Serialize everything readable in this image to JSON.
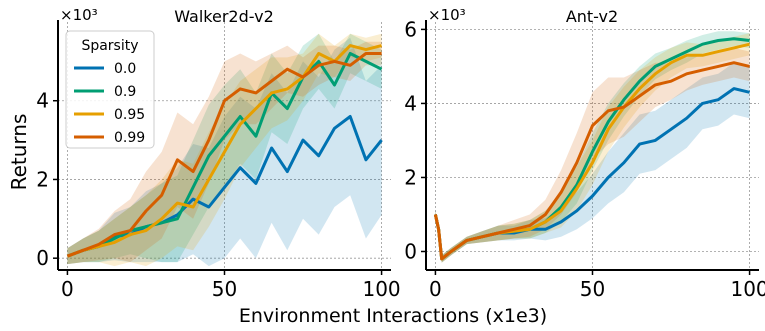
{
  "chart_data": {
    "type": "line",
    "ylabel": "Returns",
    "xlabel": "Environment Interactions (x1e3)",
    "legend": {
      "title": "Sparsity",
      "placement": "top-left of first panel",
      "entries": [
        "0.0",
        "0.9",
        "0.95",
        "0.99"
      ]
    },
    "colors": {
      "0.0": "#0072b2",
      "0.9": "#009e73",
      "0.95": "#e69f00",
      "0.99": "#d55e00"
    },
    "grid": true,
    "panels": [
      {
        "title": "Walker2d-v2",
        "multiplier_label": "×10³",
        "xlim": [
          -3,
          103
        ],
        "ylim": [
          -0.3,
          6.0
        ],
        "xticks": [
          0,
          50,
          100
        ],
        "xtick_labels": [
          "0",
          "50",
          "100"
        ],
        "yticks": [
          0,
          2,
          4
        ],
        "ytick_labels": [
          "0",
          "2",
          "4"
        ],
        "series": [
          {
            "name": "0.0",
            "x": [
              0,
              5,
              10,
              15,
              20,
              25,
              30,
              35,
              40,
              45,
              50,
              55,
              60,
              65,
              70,
              75,
              80,
              85,
              90,
              95,
              100
            ],
            "y": [
              0.05,
              0.2,
              0.3,
              0.55,
              0.6,
              0.8,
              0.9,
              1.1,
              1.5,
              1.3,
              1.8,
              2.3,
              1.9,
              2.8,
              2.2,
              3.0,
              2.6,
              3.3,
              3.6,
              2.5,
              3.0
            ],
            "band": [
              0.2,
              0.3,
              0.4,
              0.6,
              0.7,
              0.9,
              1.0,
              1.2,
              1.4,
              1.5,
              1.8,
              1.8,
              1.9,
              1.9,
              2.0,
              2.0,
              2.0,
              2.0,
              2.0,
              2.0,
              1.9
            ]
          },
          {
            "name": "0.9",
            "x": [
              0,
              5,
              10,
              15,
              20,
              25,
              30,
              35,
              40,
              45,
              50,
              55,
              60,
              65,
              70,
              75,
              80,
              85,
              90,
              95,
              100
            ],
            "y": [
              0.05,
              0.2,
              0.3,
              0.5,
              0.7,
              0.8,
              0.9,
              1.0,
              1.8,
              2.6,
              3.1,
              3.6,
              3.1,
              4.2,
              3.8,
              4.6,
              5.0,
              4.4,
              5.2,
              5.0,
              4.8
            ],
            "band": [
              0.2,
              0.3,
              0.4,
              0.5,
              0.6,
              0.8,
              1.0,
              1.1,
              1.2,
              1.3,
              1.3,
              1.2,
              1.1,
              1.0,
              0.9,
              0.8,
              0.7,
              0.6,
              0.5,
              0.5,
              0.5
            ]
          },
          {
            "name": "0.95",
            "x": [
              0,
              5,
              10,
              15,
              20,
              25,
              30,
              35,
              40,
              45,
              50,
              55,
              60,
              65,
              70,
              75,
              80,
              85,
              90,
              95,
              100
            ],
            "y": [
              0.05,
              0.2,
              0.3,
              0.4,
              0.6,
              0.7,
              1.0,
              1.4,
              1.3,
              2.0,
              2.7,
              3.4,
              3.8,
              4.2,
              4.3,
              4.6,
              5.2,
              5.0,
              5.4,
              5.3,
              5.4
            ],
            "band": [
              0.2,
              0.3,
              0.4,
              0.6,
              0.7,
              0.9,
              1.0,
              1.1,
              1.1,
              1.2,
              1.2,
              1.1,
              1.0,
              0.9,
              0.8,
              0.6,
              0.5,
              0.4,
              0.3,
              0.3,
              0.3
            ]
          },
          {
            "name": "0.99",
            "x": [
              0,
              5,
              10,
              15,
              20,
              25,
              30,
              35,
              40,
              45,
              50,
              55,
              60,
              65,
              70,
              75,
              80,
              85,
              90,
              95,
              100
            ],
            "y": [
              0.05,
              0.2,
              0.35,
              0.6,
              0.7,
              1.2,
              1.6,
              2.5,
              2.2,
              3.0,
              4.0,
              4.3,
              4.2,
              4.5,
              4.8,
              4.6,
              4.9,
              5.0,
              4.9,
              5.2,
              5.2
            ],
            "band": [
              0.2,
              0.3,
              0.4,
              0.6,
              0.8,
              1.0,
              1.1,
              1.2,
              1.2,
              1.1,
              1.0,
              0.9,
              0.8,
              0.7,
              0.6,
              0.5,
              0.5,
              0.4,
              0.4,
              0.3,
              0.3
            ]
          }
        ]
      },
      {
        "title": "Ant-v2",
        "multiplier_label": "×10³",
        "xlim": [
          -3,
          103
        ],
        "ylim": [
          -0.5,
          6.2
        ],
        "xticks": [
          0,
          50,
          100
        ],
        "xtick_labels": [
          "0",
          "50",
          "100"
        ],
        "yticks": [
          0,
          2,
          4,
          6
        ],
        "ytick_labels": [
          "0",
          "2",
          "4",
          "6"
        ],
        "series": [
          {
            "name": "0.0",
            "x": [
              0,
              1,
              2,
              5,
              10,
              15,
              20,
              25,
              30,
              35,
              40,
              45,
              50,
              55,
              60,
              65,
              70,
              75,
              80,
              85,
              90,
              95,
              100
            ],
            "y": [
              1.0,
              0.6,
              -0.2,
              0.0,
              0.3,
              0.4,
              0.5,
              0.5,
              0.6,
              0.6,
              0.8,
              1.1,
              1.5,
              2.0,
              2.4,
              2.9,
              3.0,
              3.3,
              3.6,
              4.0,
              4.1,
              4.4,
              4.3
            ],
            "band": [
              0.1,
              0.1,
              0.1,
              0.1,
              0.1,
              0.15,
              0.2,
              0.2,
              0.25,
              0.3,
              0.4,
              0.5,
              0.6,
              0.7,
              0.8,
              0.8,
              0.8,
              0.8,
              0.8,
              0.7,
              0.7,
              0.7,
              0.7
            ]
          },
          {
            "name": "0.9",
            "x": [
              0,
              1,
              2,
              5,
              10,
              15,
              20,
              25,
              30,
              35,
              40,
              45,
              50,
              55,
              60,
              65,
              70,
              75,
              80,
              85,
              90,
              95,
              100
            ],
            "y": [
              1.0,
              0.6,
              -0.2,
              0.0,
              0.3,
              0.4,
              0.5,
              0.55,
              0.6,
              0.8,
              1.2,
              1.8,
              2.7,
              3.5,
              4.1,
              4.6,
              5.0,
              5.2,
              5.4,
              5.6,
              5.7,
              5.75,
              5.7
            ],
            "band": [
              0.1,
              0.1,
              0.1,
              0.1,
              0.1,
              0.15,
              0.2,
              0.2,
              0.25,
              0.3,
              0.4,
              0.5,
              0.5,
              0.5,
              0.45,
              0.4,
              0.35,
              0.3,
              0.3,
              0.25,
              0.25,
              0.2,
              0.2
            ]
          },
          {
            "name": "0.95",
            "x": [
              0,
              1,
              2,
              5,
              10,
              15,
              20,
              25,
              30,
              35,
              40,
              45,
              50,
              55,
              60,
              65,
              70,
              75,
              80,
              85,
              90,
              95,
              100
            ],
            "y": [
              1.0,
              0.6,
              -0.2,
              0.0,
              0.3,
              0.4,
              0.5,
              0.55,
              0.6,
              0.8,
              1.1,
              1.7,
              2.4,
              3.3,
              3.9,
              4.4,
              4.8,
              5.1,
              5.3,
              5.3,
              5.4,
              5.5,
              5.6
            ],
            "band": [
              0.1,
              0.1,
              0.1,
              0.1,
              0.1,
              0.15,
              0.2,
              0.2,
              0.25,
              0.3,
              0.45,
              0.6,
              0.6,
              0.6,
              0.55,
              0.5,
              0.45,
              0.4,
              0.35,
              0.3,
              0.3,
              0.3,
              0.3
            ]
          },
          {
            "name": "0.99",
            "x": [
              0,
              1,
              2,
              5,
              10,
              15,
              20,
              25,
              30,
              35,
              40,
              45,
              50,
              55,
              60,
              65,
              70,
              75,
              80,
              85,
              90,
              95,
              100
            ],
            "y": [
              1.0,
              0.6,
              -0.2,
              0.0,
              0.3,
              0.4,
              0.5,
              0.6,
              0.7,
              1.0,
              1.6,
              2.4,
              3.4,
              3.8,
              3.9,
              4.2,
              4.5,
              4.6,
              4.8,
              4.9,
              5.0,
              5.1,
              5.0
            ],
            "band": [
              0.1,
              0.1,
              0.1,
              0.1,
              0.1,
              0.15,
              0.2,
              0.25,
              0.3,
              0.4,
              0.6,
              0.8,
              0.9,
              0.9,
              0.8,
              0.7,
              0.6,
              0.5,
              0.45,
              0.4,
              0.4,
              0.4,
              0.4
            ]
          }
        ]
      }
    ]
  }
}
